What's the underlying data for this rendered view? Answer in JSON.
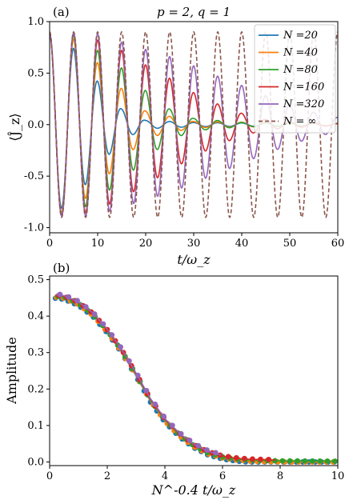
{
  "colors": {
    "N20": "#1f77b4",
    "N40": "#ff7f0e",
    "N80": "#2ca02c",
    "N160": "#d62728",
    "N320": "#9467bd",
    "Ninf": "#8c564b"
  },
  "chart_data": [
    {
      "type": "line",
      "panel_label": "(a)",
      "title": "p = 2, q = 1",
      "xlabel": "t/ω_z",
      "ylabel": "⟨Ĵ_z⟩",
      "xlim": [
        0,
        60
      ],
      "ylim": [
        -1.05,
        1.0
      ],
      "xticks": [
        0,
        10,
        20,
        30,
        40,
        50,
        60
      ],
      "xtick_labels": [
        "0",
        "10",
        "20",
        "30",
        "40",
        "50",
        "60"
      ],
      "yticks": [
        -1.0,
        -0.5,
        0.0,
        0.5,
        1.0
      ],
      "ytick_labels": [
        "-1.0",
        "-0.5",
        "0.0",
        "0.5",
        "1.0"
      ],
      "grid": false,
      "legend_position": "top-right",
      "oscillation_period": 5.0,
      "series": [
        {
          "name": "N =20",
          "N": 20,
          "style": "solid",
          "envelope": [
            [
              0,
              0.88
            ],
            [
              5,
              0.74
            ],
            [
              10,
              0.42
            ],
            [
              15,
              0.15
            ],
            [
              20,
              0.04
            ],
            [
              30,
              0.02
            ],
            [
              60,
              0.01
            ]
          ]
        },
        {
          "name": "N =40",
          "N": 40,
          "style": "solid",
          "envelope": [
            [
              0,
              0.88
            ],
            [
              5,
              0.83
            ],
            [
              10,
              0.6
            ],
            [
              15,
              0.35
            ],
            [
              20,
              0.13
            ],
            [
              30,
              0.03
            ],
            [
              60,
              0.01
            ]
          ]
        },
        {
          "name": "N =80",
          "N": 80,
          "style": "solid",
          "envelope": [
            [
              0,
              0.88
            ],
            [
              5,
              0.87
            ],
            [
              10,
              0.72
            ],
            [
              15,
              0.55
            ],
            [
              20,
              0.33
            ],
            [
              25,
              0.15
            ],
            [
              30,
              0.06
            ],
            [
              40,
              0.02
            ],
            [
              60,
              0.01
            ]
          ]
        },
        {
          "name": "N =160",
          "N": 160,
          "style": "solid",
          "envelope": [
            [
              0,
              0.88
            ],
            [
              5,
              0.89
            ],
            [
              10,
              0.82
            ],
            [
              15,
              0.72
            ],
            [
              20,
              0.58
            ],
            [
              25,
              0.45
            ],
            [
              30,
              0.31
            ],
            [
              35,
              0.2
            ],
            [
              40,
              0.11
            ],
            [
              45,
              0.05
            ],
            [
              50,
              0.03
            ],
            [
              60,
              0.01
            ]
          ]
        },
        {
          "name": "N =320",
          "N": 320,
          "style": "solid",
          "envelope": [
            [
              0,
              0.88
            ],
            [
              5,
              0.89
            ],
            [
              10,
              0.88
            ],
            [
              15,
              0.8
            ],
            [
              20,
              0.73
            ],
            [
              25,
              0.66
            ],
            [
              30,
              0.57
            ],
            [
              35,
              0.47
            ],
            [
              40,
              0.38
            ],
            [
              45,
              0.28
            ],
            [
              50,
              0.2
            ],
            [
              55,
              0.12
            ],
            [
              60,
              0.07
            ]
          ]
        },
        {
          "name": "N = ∞",
          "N": "inf",
          "style": "dashed",
          "envelope": [
            [
              0,
              0.9
            ],
            [
              60,
              0.9
            ]
          ]
        }
      ]
    },
    {
      "type": "scatter",
      "panel_label": "(b)",
      "xlabel": "N^-0.4 t/ω_z",
      "ylabel": "Amplitude",
      "xlim": [
        0,
        10
      ],
      "ylim": [
        -0.01,
        0.51
      ],
      "xticks": [
        0,
        2,
        4,
        6,
        8,
        10
      ],
      "xtick_labels": [
        "0",
        "2",
        "4",
        "6",
        "8",
        "10"
      ],
      "yticks": [
        0.0,
        0.1,
        0.2,
        0.3,
        0.4,
        0.5
      ],
      "ytick_labels": [
        "0.0",
        "0.1",
        "0.2",
        "0.3",
        "0.4",
        "0.5"
      ],
      "grid": false,
      "collapse_curve": [
        [
          0.2,
          0.455
        ],
        [
          0.5,
          0.452
        ],
        [
          1.0,
          0.435
        ],
        [
          1.5,
          0.405
        ],
        [
          2.0,
          0.36
        ],
        [
          2.5,
          0.305
        ],
        [
          3.0,
          0.24
        ],
        [
          3.5,
          0.17
        ],
        [
          4.0,
          0.115
        ],
        [
          4.5,
          0.075
        ],
        [
          5.0,
          0.045
        ],
        [
          5.5,
          0.025
        ],
        [
          6.0,
          0.014
        ],
        [
          6.5,
          0.008
        ],
        [
          7.0,
          0.005
        ],
        [
          8.0,
          0.003
        ],
        [
          10.0,
          0.002
        ]
      ],
      "series": [
        {
          "name": "N =20",
          "N": 20
        },
        {
          "name": "N =40",
          "N": 40
        },
        {
          "name": "N =80",
          "N": 80
        },
        {
          "name": "N =160",
          "N": 160
        },
        {
          "name": "N =320",
          "N": 320
        }
      ]
    }
  ]
}
